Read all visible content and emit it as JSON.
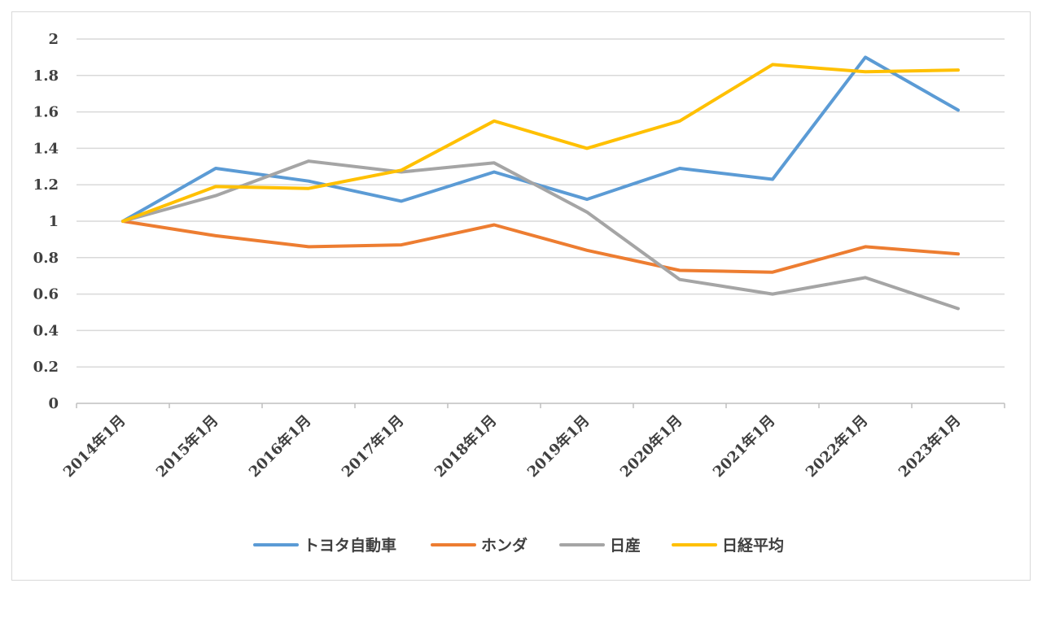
{
  "chart_data": {
    "type": "line",
    "title": "",
    "xlabel": "",
    "ylabel": "",
    "categories": [
      "2014年1月",
      "2015年1月",
      "2016年1月",
      "2017年1月",
      "2018年1月",
      "2019年1月",
      "2020年1月",
      "2021年1月",
      "2022年1月",
      "2023年1月"
    ],
    "ylim": [
      0,
      2
    ],
    "yticks": [
      0,
      0.2,
      0.4,
      0.6,
      0.8,
      1,
      1.2,
      1.4,
      1.6,
      1.8,
      2
    ],
    "ytick_labels": [
      "0",
      "0.2",
      "0.4",
      "0.6",
      "0.8",
      "1",
      "1.2",
      "1.4",
      "1.6",
      "1.8",
      "2"
    ],
    "grid": true,
    "legend_position": "bottom",
    "series": [
      {
        "name": "トヨタ自動車",
        "color": "#5b9bd5",
        "values": [
          1.0,
          1.29,
          1.22,
          1.11,
          1.27,
          1.12,
          1.29,
          1.23,
          1.9,
          1.61
        ]
      },
      {
        "name": "ホンダ",
        "color": "#ed7d31",
        "values": [
          1.0,
          0.92,
          0.86,
          0.87,
          0.98,
          0.84,
          0.73,
          0.72,
          0.86,
          0.82
        ]
      },
      {
        "name": "日産",
        "color": "#a5a5a5",
        "values": [
          1.0,
          1.14,
          1.33,
          1.27,
          1.32,
          1.05,
          0.68,
          0.6,
          0.69,
          0.52
        ]
      },
      {
        "name": "日経平均",
        "color": "#ffc000",
        "values": [
          1.0,
          1.19,
          1.18,
          1.28,
          1.55,
          1.4,
          1.55,
          1.86,
          1.82,
          1.83
        ]
      }
    ]
  }
}
